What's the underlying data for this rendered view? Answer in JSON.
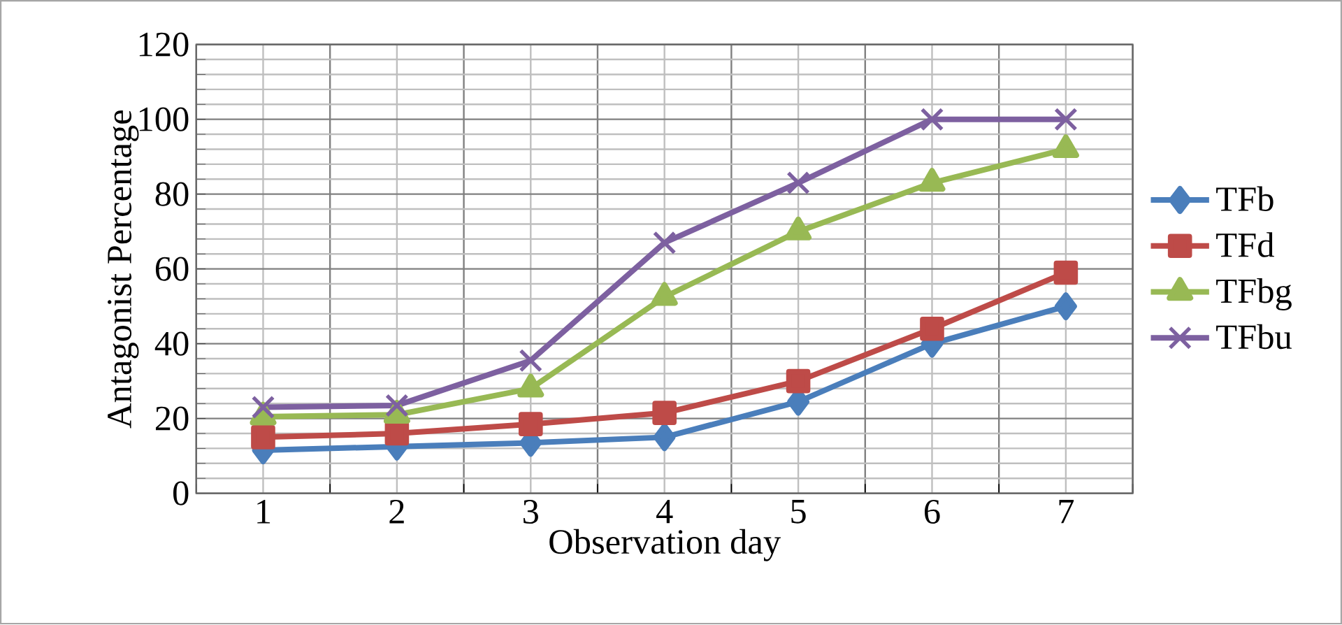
{
  "chart_data": {
    "type": "line",
    "xlabel": "Observation day",
    "ylabel": "Antagonist Percentage",
    "categories": [
      "1",
      "2",
      "3",
      "4",
      "5",
      "6",
      "7"
    ],
    "series": [
      {
        "name": "TFb",
        "color": "#4a7ebb",
        "marker": "diamond",
        "values": [
          11.5,
          12.5,
          13.5,
          15,
          24.5,
          40,
          50
        ]
      },
      {
        "name": "TFd",
        "color": "#be4b48",
        "marker": "square",
        "values": [
          15,
          16,
          18.5,
          21.5,
          30,
          44,
          59
        ]
      },
      {
        "name": "TFbg",
        "color": "#98b954",
        "marker": "triangle",
        "values": [
          20.5,
          21,
          28,
          52.5,
          70,
          83,
          92
        ]
      },
      {
        "name": "TFbu",
        "color": "#7d60a0",
        "marker": "cross",
        "values": [
          23,
          23.5,
          35.5,
          67,
          83,
          100,
          100
        ]
      }
    ],
    "ylim": [
      0,
      120
    ],
    "yticks": [
      0,
      20,
      40,
      60,
      80,
      100,
      120
    ],
    "grid": true,
    "legend": "right"
  }
}
